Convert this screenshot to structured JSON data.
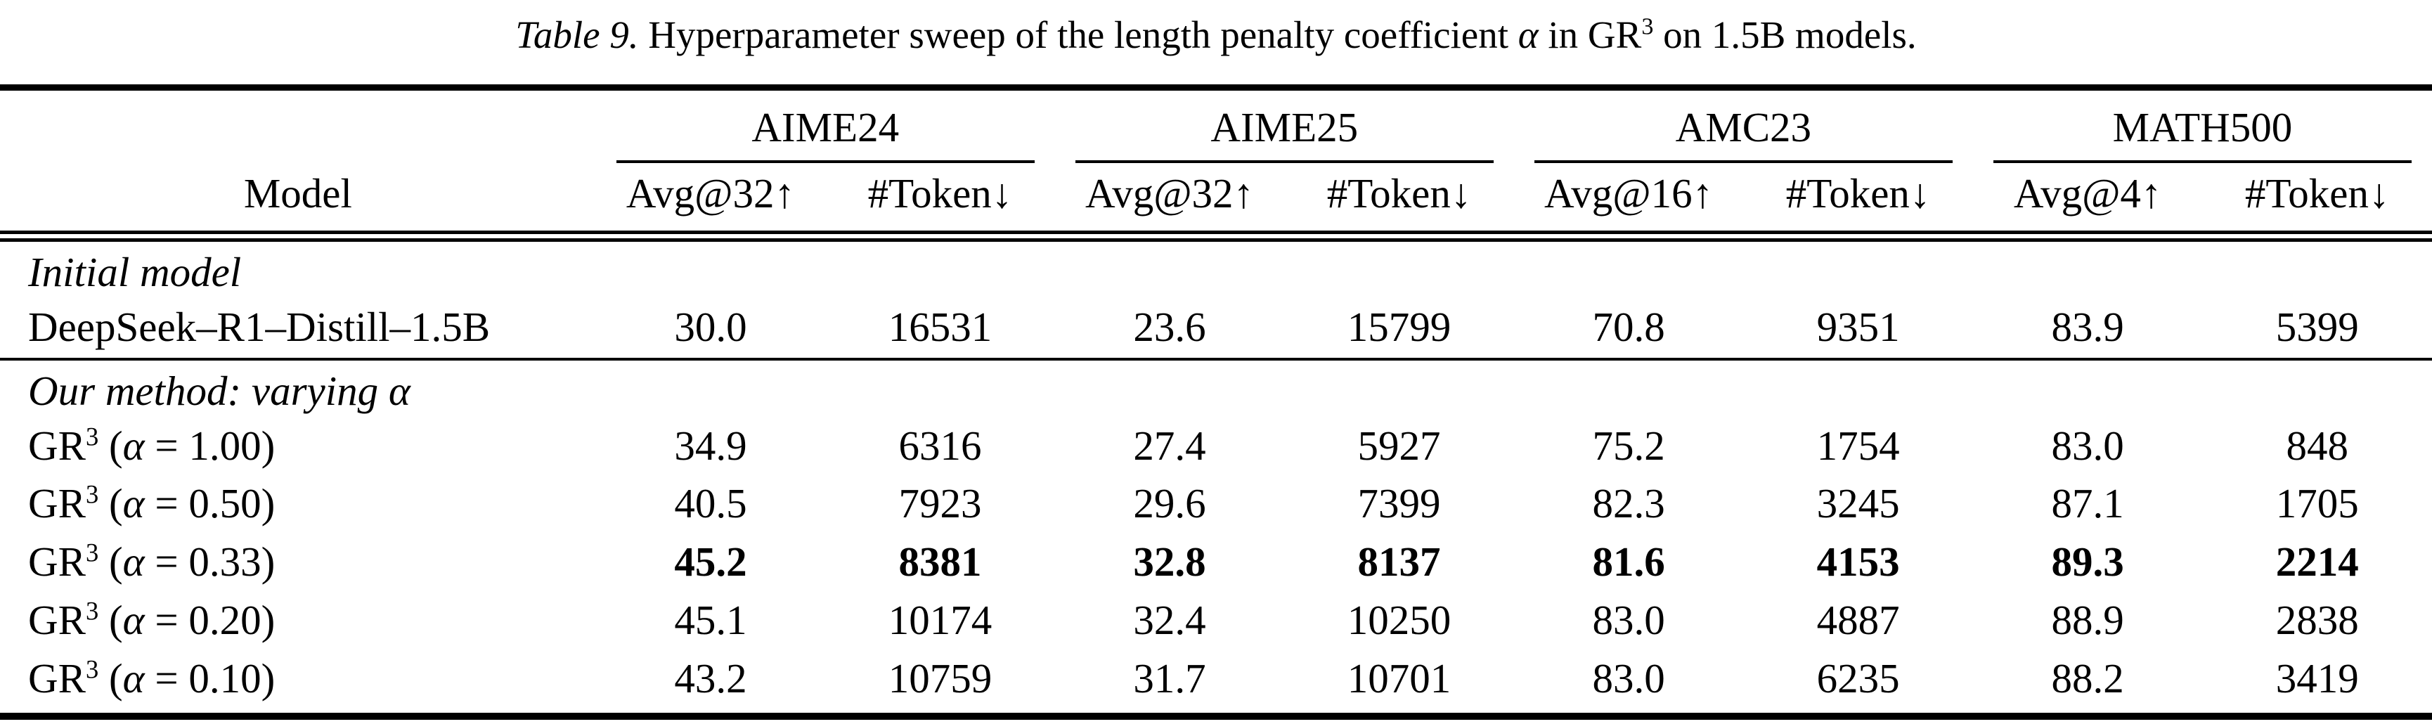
{
  "caption": {
    "tag": "Table 9.",
    "pre": " Hyperparameter sweep of the length penalty coefficient ",
    "alpha": "α",
    "mid": " in GR",
    "sup": "3",
    "post": " on 1.5B models."
  },
  "table": {
    "model_header": "Model",
    "groups": [
      {
        "name": "AIME24",
        "metric": "Avg@32↑",
        "token": "#Token↓"
      },
      {
        "name": "AIME25",
        "metric": "Avg@32↑",
        "token": "#Token↓"
      },
      {
        "name": "AMC23",
        "metric": "Avg@16↑",
        "token": "#Token↓"
      },
      {
        "name": "MATH500",
        "metric": "Avg@4↑",
        "token": "#Token↓"
      }
    ],
    "sections": [
      {
        "header": "Initial model",
        "rows": [
          {
            "label": {
              "text": "DeepSeek–R1–Distill–1.5B"
            },
            "values": [
              "30.0",
              "16531",
              "23.6",
              "15799",
              "70.8",
              "9351",
              "83.9",
              "5399"
            ],
            "bold": false
          }
        ]
      },
      {
        "header": "Our method: varying α",
        "rows": [
          {
            "label": {
              "base": "GR",
              "sup": "3",
              "open": " (",
              "alpha": "α",
              "rest": " = 1.00)"
            },
            "values": [
              "34.9",
              "6316",
              "27.4",
              "5927",
              "75.2",
              "1754",
              "83.0",
              "848"
            ],
            "bold": false
          },
          {
            "label": {
              "base": "GR",
              "sup": "3",
              "open": " (",
              "alpha": "α",
              "rest": " = 0.50)"
            },
            "values": [
              "40.5",
              "7923",
              "29.6",
              "7399",
              "82.3",
              "3245",
              "87.1",
              "1705"
            ],
            "bold": false
          },
          {
            "label": {
              "base": "GR",
              "sup": "3",
              "open": " (",
              "alpha": "α",
              "rest": " = 0.33)"
            },
            "values": [
              "45.2",
              "8381",
              "32.8",
              "8137",
              "81.6",
              "4153",
              "89.3",
              "2214"
            ],
            "bold": true
          },
          {
            "label": {
              "base": "GR",
              "sup": "3",
              "open": " (",
              "alpha": "α",
              "rest": " = 0.20)"
            },
            "values": [
              "45.1",
              "10174",
              "32.4",
              "10250",
              "83.0",
              "4887",
              "88.9",
              "2838"
            ],
            "bold": false
          },
          {
            "label": {
              "base": "GR",
              "sup": "3",
              "open": " (",
              "alpha": "α",
              "rest": " = 0.10)"
            },
            "values": [
              "43.2",
              "10759",
              "31.7",
              "10701",
              "83.0",
              "6235",
              "88.2",
              "3419"
            ],
            "bold": false
          }
        ]
      }
    ],
    "colors": {
      "text": "#000000",
      "background": "#ffffff",
      "rule": "#000000"
    }
  }
}
